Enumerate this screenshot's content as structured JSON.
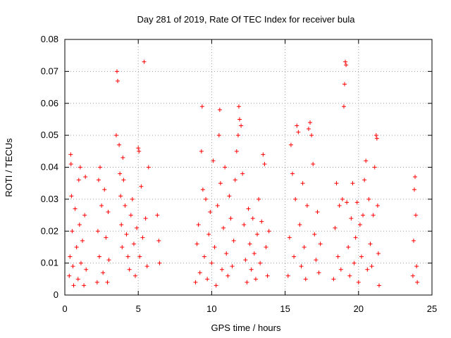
{
  "chart_data": {
    "type": "scatter",
    "title": "Day 281 of 2019, Rate Of TEC Index for receiver bula",
    "xlabel": "GPS time / hours",
    "ylabel": "ROTI / TECUs",
    "xlim": [
      0,
      25
    ],
    "ylim": [
      0,
      0.08
    ],
    "xticks": [
      0,
      5,
      10,
      15,
      20,
      25
    ],
    "yticks": [
      0,
      0.01,
      0.02,
      0.03,
      0.04,
      0.05,
      0.06,
      0.07,
      0.08
    ],
    "xtick_labels": [
      "0",
      "5",
      "10",
      "15",
      "20",
      "25"
    ],
    "ytick_labels": [
      "0",
      "0.01",
      "0.02",
      "0.03",
      "0.04",
      "0.05",
      "0.06",
      "0.07",
      "0.08"
    ],
    "grid": true,
    "marker": "plus",
    "marker_color": "#ff0000",
    "series": [
      {
        "points": [
          [
            0.3,
            0.006
          ],
          [
            0.35,
            0.012
          ],
          [
            0.4,
            0.044
          ],
          [
            0.42,
            0.041
          ],
          [
            0.45,
            0.031
          ],
          [
            0.5,
            0.02
          ],
          [
            0.55,
            0.009
          ],
          [
            0.6,
            0.003
          ],
          [
            0.7,
            0.027
          ],
          [
            0.8,
            0.015
          ],
          [
            0.9,
            0.005
          ],
          [
            0.95,
            0.036
          ],
          [
            1.0,
            0.022
          ],
          [
            1.05,
            0.04
          ],
          [
            1.1,
            0.01
          ],
          [
            1.2,
            0.017
          ],
          [
            1.3,
            0.003
          ],
          [
            1.35,
            0.025
          ],
          [
            1.4,
            0.037
          ],
          [
            1.45,
            0.008
          ],
          [
            2.2,
            0.004
          ],
          [
            2.25,
            0.02
          ],
          [
            2.3,
            0.036
          ],
          [
            2.35,
            0.012
          ],
          [
            2.4,
            0.04
          ],
          [
            2.5,
            0.028
          ],
          [
            2.6,
            0.007
          ],
          [
            2.7,
            0.033
          ],
          [
            2.8,
            0.018
          ],
          [
            2.9,
            0.004
          ],
          [
            2.95,
            0.026
          ],
          [
            3.0,
            0.011
          ],
          [
            3.5,
            0.05
          ],
          [
            3.55,
            0.07
          ],
          [
            3.6,
            0.067
          ],
          [
            3.7,
            0.047
          ],
          [
            3.75,
            0.038
          ],
          [
            3.8,
            0.031
          ],
          [
            3.85,
            0.022
          ],
          [
            3.9,
            0.015
          ],
          [
            3.95,
            0.043
          ],
          [
            4.0,
            0.036
          ],
          [
            4.1,
            0.028
          ],
          [
            4.2,
            0.019
          ],
          [
            4.3,
            0.012
          ],
          [
            4.4,
            0.008
          ],
          [
            4.5,
            0.025
          ],
          [
            4.6,
            0.03
          ],
          [
            4.7,
            0.016
          ],
          [
            4.8,
            0.006
          ],
          [
            4.9,
            0.021
          ],
          [
            5.0,
            0.046
          ],
          [
            5.05,
            0.045
          ],
          [
            5.1,
            0.012
          ],
          [
            5.2,
            0.034
          ],
          [
            5.3,
            0.018
          ],
          [
            5.4,
            0.073
          ],
          [
            5.5,
            0.024
          ],
          [
            5.6,
            0.009
          ],
          [
            5.7,
            0.04
          ],
          [
            6.3,
            0.025
          ],
          [
            6.4,
            0.017
          ],
          [
            6.45,
            0.01
          ],
          [
            8.9,
            0.004
          ],
          [
            9.0,
            0.016
          ],
          [
            9.1,
            0.022
          ],
          [
            9.2,
            0.007
          ],
          [
            9.3,
            0.045
          ],
          [
            9.35,
            0.059
          ],
          [
            9.4,
            0.033
          ],
          [
            9.5,
            0.012
          ],
          [
            9.6,
            0.03
          ],
          [
            9.7,
            0.005
          ],
          [
            9.8,
            0.019
          ],
          [
            9.9,
            0.026
          ],
          [
            10.0,
            0.01
          ],
          [
            10.1,
            0.042
          ],
          [
            10.2,
            0.015
          ],
          [
            10.3,
            0.003
          ],
          [
            10.4,
            0.028
          ],
          [
            10.5,
            0.05
          ],
          [
            10.55,
            0.058
          ],
          [
            10.6,
            0.035
          ],
          [
            10.7,
            0.008
          ],
          [
            10.8,
            0.021
          ],
          [
            10.9,
            0.04
          ],
          [
            11.0,
            0.013
          ],
          [
            11.1,
            0.006
          ],
          [
            11.2,
            0.031
          ],
          [
            11.3,
            0.024
          ],
          [
            11.4,
            0.009
          ],
          [
            11.5,
            0.017
          ],
          [
            11.6,
            0.036
          ],
          [
            11.7,
            0.045
          ],
          [
            11.8,
            0.05
          ],
          [
            11.85,
            0.059
          ],
          [
            11.9,
            0.055
          ],
          [
            12.0,
            0.053
          ],
          [
            12.1,
            0.038
          ],
          [
            12.2,
            0.022
          ],
          [
            12.3,
            0.011
          ],
          [
            12.4,
            0.004
          ],
          [
            12.5,
            0.027
          ],
          [
            12.6,
            0.016
          ],
          [
            12.7,
            0.008
          ],
          [
            12.8,
            0.024
          ],
          [
            12.9,
            0.013
          ],
          [
            13.0,
            0.005
          ],
          [
            13.1,
            0.019
          ],
          [
            13.2,
            0.03
          ],
          [
            13.3,
            0.01
          ],
          [
            13.4,
            0.023
          ],
          [
            13.5,
            0.044
          ],
          [
            13.6,
            0.041
          ],
          [
            13.7,
            0.015
          ],
          [
            13.8,
            0.006
          ],
          [
            13.9,
            0.02
          ],
          [
            15.2,
            0.006
          ],
          [
            15.3,
            0.018
          ],
          [
            15.4,
            0.047
          ],
          [
            15.5,
            0.038
          ],
          [
            15.6,
            0.012
          ],
          [
            15.7,
            0.03
          ],
          [
            15.8,
            0.053
          ],
          [
            15.9,
            0.051
          ],
          [
            16.0,
            0.022
          ],
          [
            16.1,
            0.009
          ],
          [
            16.2,
            0.035
          ],
          [
            16.3,
            0.015
          ],
          [
            16.4,
            0.005
          ],
          [
            16.5,
            0.028
          ],
          [
            16.6,
            0.052
          ],
          [
            16.7,
            0.054
          ],
          [
            16.8,
            0.05
          ],
          [
            16.9,
            0.041
          ],
          [
            17.0,
            0.019
          ],
          [
            17.1,
            0.011
          ],
          [
            17.2,
            0.026
          ],
          [
            17.3,
            0.007
          ],
          [
            17.4,
            0.016
          ],
          [
            18.3,
            0.005
          ],
          [
            18.4,
            0.021
          ],
          [
            18.5,
            0.035
          ],
          [
            18.6,
            0.012
          ],
          [
            18.7,
            0.028
          ],
          [
            18.8,
            0.008
          ],
          [
            18.9,
            0.03
          ],
          [
            19.0,
            0.059
          ],
          [
            19.05,
            0.066
          ],
          [
            19.1,
            0.073
          ],
          [
            19.15,
            0.072
          ],
          [
            19.2,
            0.029
          ],
          [
            19.3,
            0.015
          ],
          [
            19.4,
            0.006
          ],
          [
            19.5,
            0.024
          ],
          [
            19.6,
            0.035
          ],
          [
            19.7,
            0.01
          ],
          [
            19.8,
            0.018
          ],
          [
            19.9,
            0.029
          ],
          [
            20.0,
            0.004
          ],
          [
            20.1,
            0.022
          ],
          [
            20.2,
            0.012
          ],
          [
            20.3,
            0.025
          ],
          [
            20.4,
            0.036
          ],
          [
            20.5,
            0.042
          ],
          [
            20.6,
            0.008
          ],
          [
            20.7,
            0.03
          ],
          [
            20.8,
            0.016
          ],
          [
            20.9,
            0.009
          ],
          [
            21.0,
            0.025
          ],
          [
            21.1,
            0.04
          ],
          [
            21.2,
            0.05
          ],
          [
            21.25,
            0.049
          ],
          [
            21.3,
            0.028
          ],
          [
            21.35,
            0.013
          ],
          [
            21.4,
            0.003
          ],
          [
            23.7,
            0.006
          ],
          [
            23.75,
            0.017
          ],
          [
            23.8,
            0.033
          ],
          [
            23.85,
            0.037
          ],
          [
            23.9,
            0.025
          ],
          [
            23.95,
            0.009
          ],
          [
            24.0,
            0.004
          ]
        ]
      }
    ]
  }
}
